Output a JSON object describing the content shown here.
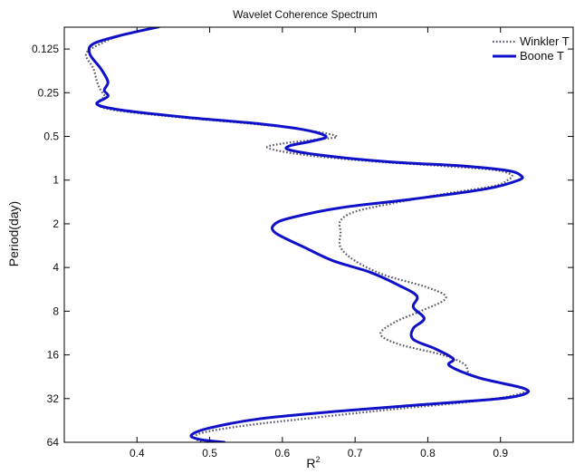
{
  "chart_data": {
    "type": "line",
    "title": "Wavelet Coherence Spectrum",
    "xlabel": "R",
    "xlabel_superscript": "2",
    "ylabel": "Period(day)",
    "xlim": [
      0.3,
      1.0
    ],
    "ylim": [
      0.0884,
      64
    ],
    "y_scale": "log2",
    "y_reversed": true,
    "x_ticks": [
      0.4,
      0.5,
      0.6,
      0.7,
      0.8,
      0.9
    ],
    "x_tick_labels": [
      "0.4",
      "0.5",
      "0.6",
      "0.7",
      "0.8",
      "0.9"
    ],
    "y_ticks": [
      0.125,
      0.25,
      0.5,
      1,
      2,
      4,
      8,
      16,
      32,
      64
    ],
    "y_tick_labels": [
      "0.125",
      "0.25",
      "0.5",
      "1",
      "2",
      "4",
      "8",
      "16",
      "32",
      "64"
    ],
    "grid": false,
    "legend_position": "top-right",
    "series": [
      {
        "name": "Winkler T",
        "style": "dotted",
        "color": "#555566",
        "points": [
          [
            0.43,
            0.088
          ],
          [
            0.38,
            0.1
          ],
          [
            0.35,
            0.115
          ],
          [
            0.33,
            0.135
          ],
          [
            0.34,
            0.17
          ],
          [
            0.345,
            0.21
          ],
          [
            0.35,
            0.24
          ],
          [
            0.355,
            0.265
          ],
          [
            0.345,
            0.3
          ],
          [
            0.37,
            0.33
          ],
          [
            0.46,
            0.37
          ],
          [
            0.56,
            0.41
          ],
          [
            0.63,
            0.45
          ],
          [
            0.675,
            0.5
          ],
          [
            0.64,
            0.53
          ],
          [
            0.6,
            0.56
          ],
          [
            0.58,
            0.6
          ],
          [
            0.63,
            0.67
          ],
          [
            0.72,
            0.74
          ],
          [
            0.82,
            0.8
          ],
          [
            0.89,
            0.85
          ],
          [
            0.915,
            0.92
          ],
          [
            0.91,
            1.0
          ],
          [
            0.89,
            1.1
          ],
          [
            0.82,
            1.25
          ],
          [
            0.75,
            1.45
          ],
          [
            0.7,
            1.65
          ],
          [
            0.68,
            1.9
          ],
          [
            0.68,
            2.3
          ],
          [
            0.68,
            2.9
          ],
          [
            0.7,
            3.6
          ],
          [
            0.74,
            4.5
          ],
          [
            0.8,
            5.5
          ],
          [
            0.825,
            6.5
          ],
          [
            0.79,
            8.0
          ],
          [
            0.755,
            9.5
          ],
          [
            0.735,
            11.5
          ],
          [
            0.76,
            13.5
          ],
          [
            0.82,
            16.0
          ],
          [
            0.85,
            18.5
          ],
          [
            0.86,
            22.0
          ],
          [
            0.9,
            25.0
          ],
          [
            0.935,
            28.0
          ],
          [
            0.91,
            31.0
          ],
          [
            0.85,
            34.0
          ],
          [
            0.75,
            38.0
          ],
          [
            0.65,
            43.0
          ],
          [
            0.55,
            49.0
          ],
          [
            0.49,
            55.0
          ],
          [
            0.48,
            60.0
          ],
          [
            0.49,
            64.0
          ]
        ]
      },
      {
        "name": "Boone T",
        "style": "solid",
        "color": "#1010c8",
        "points": [
          [
            0.43,
            0.088
          ],
          [
            0.38,
            0.1
          ],
          [
            0.34,
            0.115
          ],
          [
            0.335,
            0.135
          ],
          [
            0.35,
            0.17
          ],
          [
            0.36,
            0.21
          ],
          [
            0.355,
            0.24
          ],
          [
            0.36,
            0.265
          ],
          [
            0.345,
            0.3
          ],
          [
            0.38,
            0.33
          ],
          [
            0.47,
            0.37
          ],
          [
            0.57,
            0.41
          ],
          [
            0.63,
            0.45
          ],
          [
            0.66,
            0.5
          ],
          [
            0.64,
            0.54
          ],
          [
            0.61,
            0.58
          ],
          [
            0.61,
            0.62
          ],
          [
            0.66,
            0.68
          ],
          [
            0.75,
            0.75
          ],
          [
            0.85,
            0.8
          ],
          [
            0.91,
            0.86
          ],
          [
            0.928,
            0.93
          ],
          [
            0.925,
            1.0
          ],
          [
            0.88,
            1.15
          ],
          [
            0.78,
            1.35
          ],
          [
            0.68,
            1.55
          ],
          [
            0.615,
            1.8
          ],
          [
            0.59,
            2.0
          ],
          [
            0.59,
            2.3
          ],
          [
            0.63,
            2.9
          ],
          [
            0.67,
            3.6
          ],
          [
            0.72,
            4.3
          ],
          [
            0.76,
            5.3
          ],
          [
            0.785,
            6.3
          ],
          [
            0.78,
            7.5
          ],
          [
            0.795,
            9.0
          ],
          [
            0.78,
            10.5
          ],
          [
            0.78,
            12.5
          ],
          [
            0.81,
            14.5
          ],
          [
            0.835,
            17.0
          ],
          [
            0.83,
            19.0
          ],
          [
            0.87,
            23.0
          ],
          [
            0.93,
            27.0
          ],
          [
            0.935,
            29.5
          ],
          [
            0.9,
            32.0
          ],
          [
            0.8,
            35.0
          ],
          [
            0.68,
            39.0
          ],
          [
            0.57,
            44.0
          ],
          [
            0.5,
            51.0
          ],
          [
            0.475,
            57.0
          ],
          [
            0.485,
            61.0
          ],
          [
            0.52,
            64.0
          ]
        ]
      }
    ]
  }
}
